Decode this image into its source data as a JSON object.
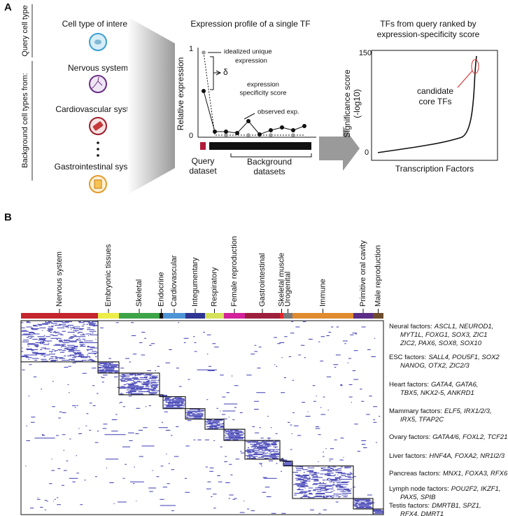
{
  "panel_a": {
    "label": "A",
    "query_label": "Query cell type",
    "background_label": "Background cell types from:",
    "cell_types": [
      "Cell type of interest",
      "Nervous system",
      "Cardiovascular system",
      "Gastrointestinal system"
    ],
    "profile": {
      "title": "Expression profile of a single TF",
      "y_label": "Relative expression",
      "y_ticks": [
        1,
        0
      ],
      "idealized": [
        "idealized unique",
        "expression"
      ],
      "delta": "δ",
      "score": [
        "expression",
        "specificity score"
      ],
      "observed": "observed exp.",
      "query": [
        "Query",
        "dataset"
      ],
      "background": [
        "Background",
        "datasets"
      ]
    },
    "ranking": {
      "title": [
        "TFs from query ranked by",
        "expression-specificity score"
      ],
      "y_label": [
        "Significance score",
        "(-log10)"
      ],
      "y_ticks": [
        150,
        0
      ],
      "x_label": "Transcription Factors",
      "callout": [
        "candidate",
        "core TFs"
      ]
    }
  },
  "panel_b": {
    "label": "B",
    "tissues": [
      {
        "name": "Nervous system",
        "color": "#c4262e"
      },
      {
        "name": "Embryonic tissues",
        "color": "#eded4a"
      },
      {
        "name": "Skeletal",
        "color": "#3da447"
      },
      {
        "name": "Endocrine",
        "color": "#111111"
      },
      {
        "name": "Cardiovascular",
        "color": "#4d93d6"
      },
      {
        "name": "Integumentary",
        "color": "#2f3592"
      },
      {
        "name": "Respiratory",
        "color": "#d5e25a"
      },
      {
        "name": "Female reproduction",
        "color": "#d2219a"
      },
      {
        "name": "Gastrointestinal",
        "color": "#9c1f3c"
      },
      {
        "name": "Skeletal muscle",
        "color": "#e0242b"
      },
      {
        "name": "Urogenital",
        "color": "#7a7a7a"
      },
      {
        "name": "Immune",
        "color": "#e08b2e"
      },
      {
        "name": "Primitive oral cavity",
        "color": "#5b2d86"
      },
      {
        "name": "Male reproduction",
        "color": "#6e4c2c"
      }
    ],
    "factors": [
      {
        "label": "Neural factors:",
        "lines": [
          "ASCL1, NEUROD1,",
          "MYT1L, FOXG1, SOX3, ZIC1",
          "ZIC2, PAX6, SOX8, SOX10"
        ]
      },
      {
        "label": "ESC factors:",
        "lines": [
          "SALL4, POU5F1, SOX2",
          "NANOG, OTX2, ZIC2/3"
        ]
      },
      {
        "label": "Heart factors:",
        "lines": [
          "GATA4, GATA6,",
          "TBX5, NKX2-5, ANKRD1"
        ]
      },
      {
        "label": "Mammary factors:",
        "lines": [
          "ELF5, IRX1/2/3,",
          "IRX5, TFAP2C"
        ]
      },
      {
        "label": "Ovary factors:",
        "lines": [
          "GATA4/6, FOXL2, TCF21"
        ]
      },
      {
        "label": "Liver factors:",
        "lines": [
          "HNF4A, FOXA2, NR1I2/3"
        ]
      },
      {
        "label": "Pancreas factors:",
        "lines": [
          "MNX1, FOXA3, RFX6"
        ]
      },
      {
        "label": "Lymph node factors:",
        "lines": [
          "POU2F2, IKZF1,",
          "PAX5, SPIB"
        ]
      },
      {
        "label": "Testis factors:",
        "lines": [
          "DMRTB1, SPZ1,",
          "RFX4, DMRT1"
        ]
      }
    ]
  }
}
